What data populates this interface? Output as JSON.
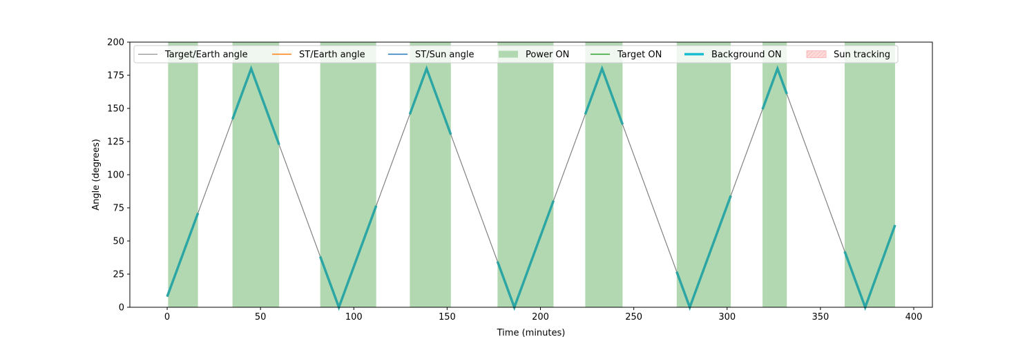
{
  "chart_data": {
    "type": "line",
    "title": "",
    "xlabel": "Time (minutes)",
    "ylabel": "Angle (degrees)",
    "xlim": [
      -20,
      410
    ],
    "ylim": [
      0,
      200
    ],
    "xticks": [
      0,
      50,
      100,
      150,
      200,
      250,
      300,
      350,
      400
    ],
    "yticks": [
      0,
      25,
      50,
      75,
      100,
      125,
      150,
      175,
      200
    ],
    "grid": false,
    "legend_position": "top",
    "colors": {
      "target_earth": "#808080",
      "st_earth": "#ff7f0e",
      "st_sun": "#1f77b4",
      "power_on": "#b2d8b2",
      "target_on": "#2ca02c",
      "background_on": "#2ca6a4",
      "background_on_legend": "#17becf",
      "sun_tracking": "#ffdada"
    },
    "legend": [
      {
        "label": "Target/Earth angle",
        "kind": "line",
        "color": "#808080",
        "width": 1
      },
      {
        "label": "ST/Earth angle",
        "kind": "line",
        "color": "#ff7f0e",
        "width": 1.5
      },
      {
        "label": "ST/Sun angle",
        "kind": "line",
        "color": "#1f77b4",
        "width": 1.5
      },
      {
        "label": "Power ON",
        "kind": "patch",
        "color": "#b2d8b2"
      },
      {
        "label": "Target ON",
        "kind": "line",
        "color": "#2ca02c",
        "width": 1.5
      },
      {
        "label": "Background ON",
        "kind": "line",
        "color": "#17becf",
        "width": 3.5
      },
      {
        "label": "Sun tracking",
        "kind": "hatch",
        "color": "#ffdada"
      }
    ],
    "target_earth_angle": {
      "x": [
        0,
        45,
        92,
        139,
        186,
        233,
        280,
        327,
        374,
        390
      ],
      "y": [
        8,
        180,
        0,
        180,
        0,
        180,
        0,
        180,
        0,
        62
      ]
    },
    "power_on_intervals": [
      [
        0.5,
        16.5
      ],
      [
        35,
        60
      ],
      [
        82,
        112
      ],
      [
        130,
        152
      ],
      [
        177,
        207
      ],
      [
        224,
        244
      ],
      [
        273,
        302
      ],
      [
        319,
        332
      ],
      [
        363,
        390
      ]
    ],
    "background_on_intervals": [
      [
        0,
        16.5
      ],
      [
        35,
        60
      ],
      [
        82,
        112
      ],
      [
        130,
        152
      ],
      [
        177,
        207
      ],
      [
        224,
        244
      ],
      [
        273,
        302
      ],
      [
        319,
        332
      ],
      [
        363,
        390
      ]
    ]
  }
}
